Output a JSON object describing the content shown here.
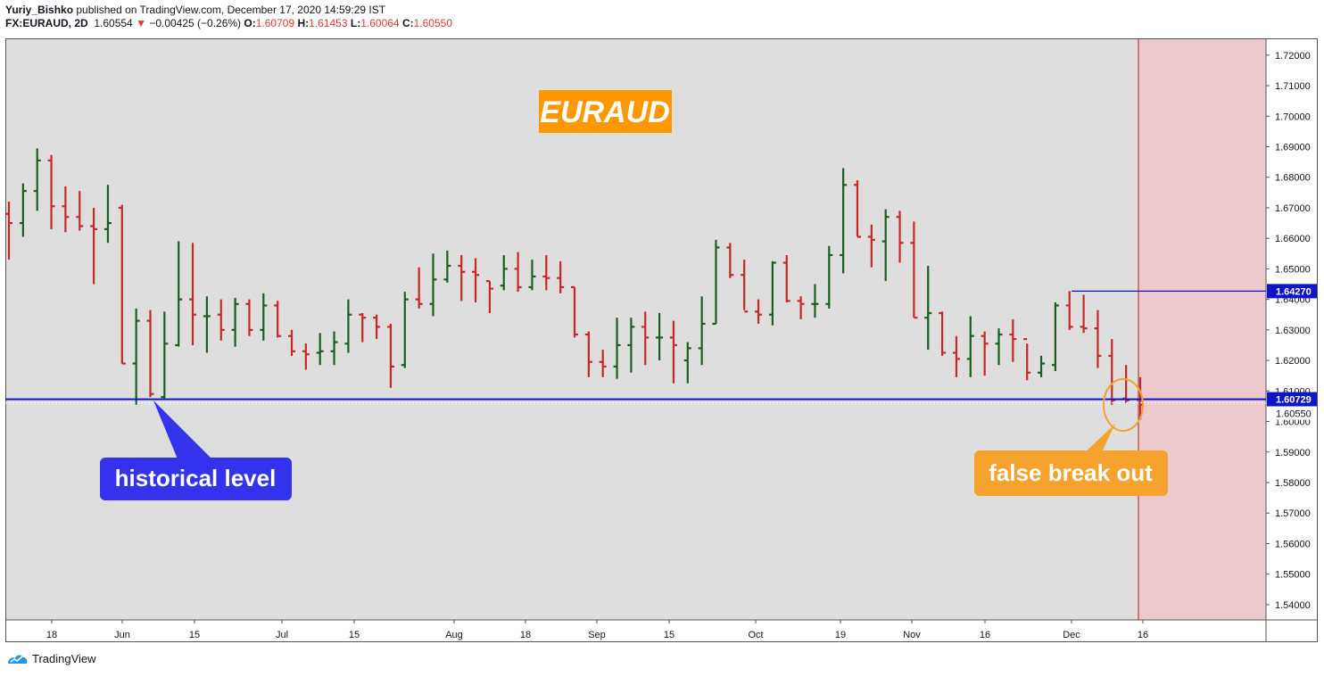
{
  "header": {
    "author": "Yuriy_Bishko",
    "published_text": "published on TradingView.com, December 17, 2020 14:59:29 IST",
    "symbol": "FX:EURAUD, 2D",
    "last": "1.60554",
    "change": "−0.00425 (−0.26%)",
    "open_label": "O:",
    "open": "1.60709",
    "high_label": "H:",
    "high": "1.61453",
    "low_label": "L:",
    "low": "1.60064",
    "close_label": "C:",
    "close": "1.60550"
  },
  "footer": {
    "brand": "TradingView"
  },
  "colors": {
    "up": "#1b5e20",
    "down": "#c62828",
    "plot_bg": "#dedede",
    "shade": "#ecc9cd",
    "level": "#0d17c7",
    "callout_blue": "#3333ee",
    "callout_orange": "#f5a32e",
    "title_bg": "#ff9800"
  },
  "chart_data": {
    "type": "ohlc_bar",
    "title": "EURAUD",
    "ylim": [
      1.535,
      1.7255
    ],
    "y_ticks": [
      "1.72000",
      "1.71000",
      "1.70000",
      "1.69000",
      "1.68000",
      "1.67000",
      "1.66000",
      "1.65000",
      "1.64000",
      "1.63000",
      "1.62000",
      "1.61000",
      "1.60000",
      "1.59000",
      "1.58000",
      "1.57000",
      "1.56000",
      "1.55000",
      "1.54000"
    ],
    "x_ticks": [
      "18",
      "Jun",
      "15",
      "Jul",
      "15",
      "Aug",
      "18",
      "Sep",
      "15",
      "Oct",
      "19",
      "Nov",
      "16",
      "Dec",
      "16"
    ],
    "bars": [
      {
        "o": 1.668,
        "h": 1.672,
        "l": 1.653,
        "c": 1.665
      },
      {
        "o": 1.665,
        "h": 1.678,
        "l": 1.6605,
        "c": 1.6755
      },
      {
        "o": 1.6755,
        "h": 1.6895,
        "l": 1.669,
        "c": 1.6855
      },
      {
        "o": 1.6855,
        "h": 1.6873,
        "l": 1.663,
        "c": 1.6705
      },
      {
        "o": 1.6705,
        "h": 1.677,
        "l": 1.662,
        "c": 1.667
      },
      {
        "o": 1.667,
        "h": 1.6755,
        "l": 1.6625,
        "c": 1.664
      },
      {
        "o": 1.664,
        "h": 1.67,
        "l": 1.645,
        "c": 1.663
      },
      {
        "o": 1.663,
        "h": 1.6775,
        "l": 1.6585,
        "c": 1.665
      },
      {
        "o": 1.67,
        "h": 1.671,
        "l": 1.619,
        "c": 1.619
      },
      {
        "o": 1.619,
        "h": 1.637,
        "l": 1.6055,
        "c": 1.633
      },
      {
        "o": 1.633,
        "h": 1.6365,
        "l": 1.608,
        "c": 1.609
      },
      {
        "o": 1.608,
        "h": 1.636,
        "l": 1.6075,
        "c": 1.6255
      },
      {
        "o": 1.625,
        "h": 1.659,
        "l": 1.6245,
        "c": 1.64
      },
      {
        "o": 1.64,
        "h": 1.6585,
        "l": 1.625,
        "c": 1.635
      },
      {
        "o": 1.6345,
        "h": 1.641,
        "l": 1.6225,
        "c": 1.6345
      },
      {
        "o": 1.635,
        "h": 1.64,
        "l": 1.6265,
        "c": 1.63
      },
      {
        "o": 1.63,
        "h": 1.6405,
        "l": 1.6245,
        "c": 1.6385
      },
      {
        "o": 1.6385,
        "h": 1.64,
        "l": 1.628,
        "c": 1.63
      },
      {
        "o": 1.63,
        "h": 1.642,
        "l": 1.6265,
        "c": 1.638
      },
      {
        "o": 1.638,
        "h": 1.6395,
        "l": 1.6275,
        "c": 1.628
      },
      {
        "o": 1.628,
        "h": 1.63,
        "l": 1.6215,
        "c": 1.623
      },
      {
        "o": 1.623,
        "h": 1.6255,
        "l": 1.617,
        "c": 1.622
      },
      {
        "o": 1.6225,
        "h": 1.629,
        "l": 1.6185,
        "c": 1.623
      },
      {
        "o": 1.623,
        "h": 1.6295,
        "l": 1.6185,
        "c": 1.626
      },
      {
        "o": 1.6255,
        "h": 1.64,
        "l": 1.6225,
        "c": 1.635
      },
      {
        "o": 1.635,
        "h": 1.6355,
        "l": 1.626,
        "c": 1.634
      },
      {
        "o": 1.634,
        "h": 1.635,
        "l": 1.627,
        "c": 1.631
      },
      {
        "o": 1.631,
        "h": 1.632,
        "l": 1.611,
        "c": 1.618
      },
      {
        "o": 1.6185,
        "h": 1.6425,
        "l": 1.6175,
        "c": 1.64
      },
      {
        "o": 1.64,
        "h": 1.6505,
        "l": 1.637,
        "c": 1.6385
      },
      {
        "o": 1.6385,
        "h": 1.655,
        "l": 1.6345,
        "c": 1.6465
      },
      {
        "o": 1.6465,
        "h": 1.656,
        "l": 1.6455,
        "c": 1.651
      },
      {
        "o": 1.651,
        "h": 1.6545,
        "l": 1.6395,
        "c": 1.649
      },
      {
        "o": 1.649,
        "h": 1.6535,
        "l": 1.639,
        "c": 1.648
      },
      {
        "o": 1.646,
        "h": 1.646,
        "l": 1.6355,
        "c": 1.6435
      },
      {
        "o": 1.6445,
        "h": 1.6545,
        "l": 1.643,
        "c": 1.65
      },
      {
        "o": 1.65,
        "h": 1.6555,
        "l": 1.6425,
        "c": 1.644
      },
      {
        "o": 1.644,
        "h": 1.653,
        "l": 1.643,
        "c": 1.6475
      },
      {
        "o": 1.6475,
        "h": 1.6545,
        "l": 1.643,
        "c": 1.647
      },
      {
        "o": 1.647,
        "h": 1.6525,
        "l": 1.642,
        "c": 1.644
      },
      {
        "o": 1.644,
        "h": 1.644,
        "l": 1.6275,
        "c": 1.6285
      },
      {
        "o": 1.6285,
        "h": 1.6295,
        "l": 1.6145,
        "c": 1.6195
      },
      {
        "o": 1.6195,
        "h": 1.6235,
        "l": 1.6145,
        "c": 1.618
      },
      {
        "o": 1.618,
        "h": 1.634,
        "l": 1.614,
        "c": 1.625
      },
      {
        "o": 1.625,
        "h": 1.634,
        "l": 1.616,
        "c": 1.631
      },
      {
        "o": 1.631,
        "h": 1.636,
        "l": 1.6185,
        "c": 1.6275
      },
      {
        "o": 1.6275,
        "h": 1.6355,
        "l": 1.62,
        "c": 1.6275
      },
      {
        "o": 1.6275,
        "h": 1.633,
        "l": 1.6125,
        "c": 1.625
      },
      {
        "o": 1.62,
        "h": 1.626,
        "l": 1.6125,
        "c": 1.624
      },
      {
        "o": 1.624,
        "h": 1.641,
        "l": 1.6185,
        "c": 1.632
      },
      {
        "o": 1.632,
        "h": 1.6595,
        "l": 1.632,
        "c": 1.657
      },
      {
        "o": 1.657,
        "h": 1.6585,
        "l": 1.647,
        "c": 1.648
      },
      {
        "o": 1.648,
        "h": 1.653,
        "l": 1.6365,
        "c": 1.636
      },
      {
        "o": 1.636,
        "h": 1.64,
        "l": 1.632,
        "c": 1.635
      },
      {
        "o": 1.635,
        "h": 1.6525,
        "l": 1.6315,
        "c": 1.652
      },
      {
        "o": 1.652,
        "h": 1.6545,
        "l": 1.639,
        "c": 1.6395
      },
      {
        "o": 1.6395,
        "h": 1.641,
        "l": 1.6335,
        "c": 1.6385
      },
      {
        "o": 1.6385,
        "h": 1.645,
        "l": 1.634,
        "c": 1.6385
      },
      {
        "o": 1.6385,
        "h": 1.6575,
        "l": 1.637,
        "c": 1.6545
      },
      {
        "o": 1.6545,
        "h": 1.683,
        "l": 1.6485,
        "c": 1.6775
      },
      {
        "o": 1.6775,
        "h": 1.679,
        "l": 1.6605,
        "c": 1.6605
      },
      {
        "o": 1.6605,
        "h": 1.6645,
        "l": 1.6505,
        "c": 1.6595
      },
      {
        "o": 1.659,
        "h": 1.6695,
        "l": 1.646,
        "c": 1.667
      },
      {
        "o": 1.667,
        "h": 1.669,
        "l": 1.652,
        "c": 1.6585
      },
      {
        "o": 1.6585,
        "h": 1.6655,
        "l": 1.634,
        "c": 1.634
      },
      {
        "o": 1.634,
        "h": 1.651,
        "l": 1.6235,
        "c": 1.6355
      },
      {
        "o": 1.6355,
        "h": 1.636,
        "l": 1.6215,
        "c": 1.6225
      },
      {
        "o": 1.6225,
        "h": 1.628,
        "l": 1.6145,
        "c": 1.6205
      },
      {
        "o": 1.6205,
        "h": 1.6345,
        "l": 1.6145,
        "c": 1.628
      },
      {
        "o": 1.628,
        "h": 1.6295,
        "l": 1.615,
        "c": 1.6255
      },
      {
        "o": 1.6255,
        "h": 1.6305,
        "l": 1.6185,
        "c": 1.6285
      },
      {
        "o": 1.6285,
        "h": 1.6335,
        "l": 1.6195,
        "c": 1.627
      },
      {
        "o": 1.627,
        "h": 1.6255,
        "l": 1.6135,
        "c": 1.616
      },
      {
        "o": 1.616,
        "h": 1.6215,
        "l": 1.6145,
        "c": 1.619
      },
      {
        "o": 1.6185,
        "h": 1.639,
        "l": 1.6165,
        "c": 1.638
      },
      {
        "o": 1.638,
        "h": 1.6427,
        "l": 1.63,
        "c": 1.631
      },
      {
        "o": 1.631,
        "h": 1.6415,
        "l": 1.629,
        "c": 1.6305
      },
      {
        "o": 1.6305,
        "h": 1.6365,
        "l": 1.6175,
        "c": 1.6215
      },
      {
        "o": 1.6215,
        "h": 1.627,
        "l": 1.6055,
        "c": 1.607
      },
      {
        "o": 1.6075,
        "h": 1.6185,
        "l": 1.606,
        "c": 1.607
      },
      {
        "o": 1.6071,
        "h": 1.6145,
        "l": 1.6006,
        "c": 1.6055
      }
    ],
    "levels": [
      {
        "label": "1.60729",
        "value": 1.60729
      },
      {
        "label": "1.64270",
        "value": 1.6427
      }
    ],
    "last_price_label": "1.60550",
    "last_price": 1.6055,
    "annotations": {
      "historical": "historical level",
      "false_break": "false break out"
    }
  }
}
